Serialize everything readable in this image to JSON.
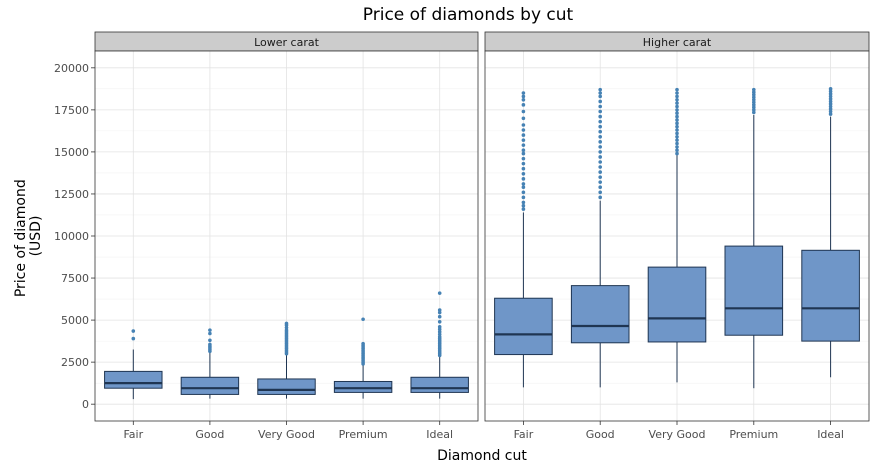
{
  "chart_data": {
    "type": "box",
    "title": "Price of diamonds by cut",
    "xlabel": "Diamond cut",
    "ylabel": "Price of diamond\n(USD)",
    "ylim": [
      -1000,
      21000
    ],
    "y_ticks": [
      0,
      2500,
      5000,
      7500,
      10000,
      12500,
      15000,
      17500,
      20000
    ],
    "categories": [
      "Fair",
      "Good",
      "Very Good",
      "Premium",
      "Ideal"
    ],
    "grid": true,
    "colors": {
      "box_fill": "#6f96c8",
      "box_line": "#1f3552",
      "outlier": "#4682b4",
      "strip_bg": "#cccccc"
    },
    "panels": [
      {
        "label": "Lower carat",
        "boxes": [
          {
            "category": "Fair",
            "whisker_low": 300,
            "q1": 950,
            "median": 1250,
            "q3": 1950,
            "whisker_high": 3250,
            "outliers": [
              3900,
              4350
            ]
          },
          {
            "category": "Good",
            "whisker_low": 330,
            "q1": 580,
            "median": 950,
            "q3": 1600,
            "whisker_high": 3050,
            "outliers": [
              3150,
              3250,
              3350,
              3450,
              3550,
              3800,
              4200,
              4400
            ]
          },
          {
            "category": "Very Good",
            "whisker_low": 330,
            "q1": 580,
            "median": 850,
            "q3": 1500,
            "whisker_high": 2950,
            "outliers": [
              3000,
              3100,
              3200,
              3300,
              3400,
              3500,
              3600,
              3700,
              3800,
              3900,
              4000,
              4100,
              4200,
              4300,
              4400,
              4550,
              4700,
              4800
            ]
          },
          {
            "category": "Premium",
            "whisker_low": 330,
            "q1": 700,
            "median": 950,
            "q3": 1350,
            "whisker_high": 2300,
            "outliers": [
              2400,
              2500,
              2600,
              2700,
              2800,
              2900,
              3000,
              3100,
              3200,
              3300,
              3400,
              3500,
              3600,
              5050
            ]
          },
          {
            "category": "Ideal",
            "whisker_low": 330,
            "q1": 700,
            "median": 950,
            "q3": 1600,
            "whisker_high": 2850,
            "outliers": [
              2900,
              3000,
              3100,
              3200,
              3300,
              3400,
              3500,
              3600,
              3700,
              3800,
              3900,
              4000,
              4150,
              4300,
              4450,
              4600,
              4900,
              5200,
              5450,
              5600,
              6600
            ]
          }
        ]
      },
      {
        "label": "Higher carat",
        "boxes": [
          {
            "category": "Fair",
            "whisker_low": 1000,
            "q1": 2950,
            "median": 4150,
            "q3": 6300,
            "whisker_high": 11400,
            "outliers": [
              11600,
              11800,
              12000,
              12300,
              12600,
              12900,
              13100,
              13400,
              13700,
              14000,
              14300,
              14600,
              14900,
              15100,
              15400,
              15700,
              16000,
              16300,
              16600,
              17000,
              17400,
              17800,
              18100,
              18300,
              18500
            ]
          },
          {
            "category": "Good",
            "whisker_low": 1000,
            "q1": 3650,
            "median": 4650,
            "q3": 7050,
            "whisker_high": 12100,
            "outliers": [
              12300,
              12600,
              12900,
              13200,
              13500,
              13800,
              14100,
              14400,
              14700,
              15000,
              15300,
              15600,
              15900,
              16200,
              16500,
              16800,
              17100,
              17400,
              17700,
              18000,
              18300,
              18500,
              18700
            ]
          },
          {
            "category": "Very Good",
            "whisker_low": 1300,
            "q1": 3700,
            "median": 5100,
            "q3": 8150,
            "whisker_high": 14800,
            "outliers": [
              14900,
              15100,
              15300,
              15500,
              15700,
              15900,
              16100,
              16300,
              16500,
              16700,
              16900,
              17100,
              17300,
              17500,
              17700,
              17900,
              18100,
              18300,
              18500,
              18700
            ]
          },
          {
            "category": "Premium",
            "whisker_low": 950,
            "q1": 4100,
            "median": 5700,
            "q3": 9400,
            "whisker_high": 17200,
            "outliers": [
              17350,
              17500,
              17650,
              17800,
              17950,
              18100,
              18250,
              18400,
              18550,
              18700
            ]
          },
          {
            "category": "Ideal",
            "whisker_low": 1600,
            "q1": 3750,
            "median": 5700,
            "q3": 9150,
            "whisker_high": 17100,
            "outliers": [
              17250,
              17400,
              17550,
              17700,
              17850,
              18000,
              18150,
              18300,
              18450,
              18600,
              18750
            ]
          }
        ]
      }
    ]
  }
}
